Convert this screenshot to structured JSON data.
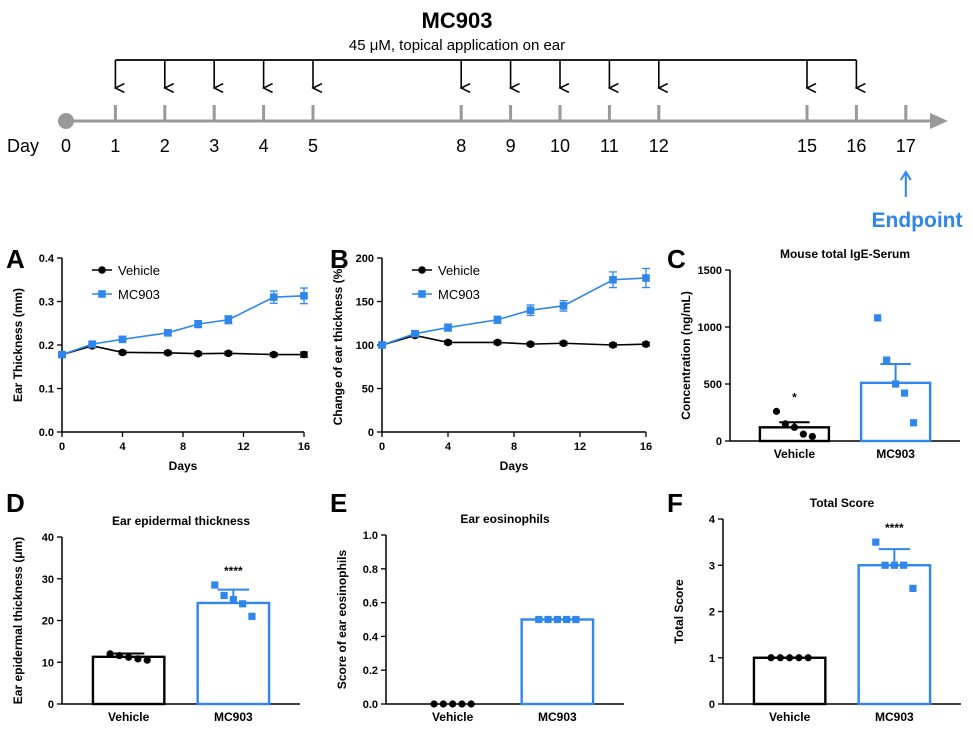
{
  "colors": {
    "vehicle": "#000000",
    "mc903": "#2f86eb",
    "endpoint": "#2f86eb",
    "timeline_axis": "#999999"
  },
  "timeline": {
    "title": "MC903",
    "subtitle": "45 μM, topical application on ear",
    "day_label": "Day",
    "days": [
      0,
      1,
      2,
      3,
      4,
      5,
      8,
      9,
      10,
      11,
      12,
      15,
      16,
      17
    ],
    "application_days": [
      1,
      2,
      3,
      4,
      5,
      8,
      9,
      10,
      11,
      12,
      15,
      16
    ],
    "endpoint_day": 17,
    "endpoint_label": "Endpoint"
  },
  "chart_data": [
    {
      "panel": "A",
      "type": "line",
      "title": "",
      "xlabel": "Days",
      "ylabel": "Ear Thickness (mm)",
      "xlim": [
        0,
        16
      ],
      "ylim": [
        0,
        0.4
      ],
      "xticks": [
        0,
        4,
        8,
        12,
        16
      ],
      "yticks": [
        0.0,
        0.1,
        0.2,
        0.3,
        0.4
      ],
      "yticklabels": [
        "0.0",
        "0.1",
        "0.2",
        "0.3",
        "0.4"
      ],
      "legend": "top-left",
      "series": [
        {
          "name": "Vehicle",
          "x": [
            0,
            2,
            4,
            7,
            9,
            11,
            14,
            16
          ],
          "y": [
            0.178,
            0.198,
            0.183,
            0.182,
            0.18,
            0.181,
            0.178,
            0.178
          ],
          "err": [
            0.004,
            0.004,
            0.004,
            0.004,
            0.004,
            0.004,
            0.004,
            0.006
          ]
        },
        {
          "name": "MC903",
          "x": [
            0,
            2,
            4,
            7,
            9,
            11,
            14,
            16
          ],
          "y": [
            0.178,
            0.202,
            0.213,
            0.228,
            0.248,
            0.258,
            0.31,
            0.313
          ],
          "err": [
            0.004,
            0.005,
            0.006,
            0.007,
            0.008,
            0.009,
            0.014,
            0.018
          ]
        }
      ]
    },
    {
      "panel": "B",
      "type": "line",
      "title": "",
      "xlabel": "Days",
      "ylabel": "Change of ear thickness (%)",
      "xlim": [
        0,
        16
      ],
      "ylim": [
        0,
        200
      ],
      "xticks": [
        0,
        4,
        8,
        12,
        16
      ],
      "yticks": [
        0,
        50,
        100,
        150,
        200
      ],
      "yticklabels": [
        "0",
        "50",
        "100",
        "150",
        "200"
      ],
      "legend": "top-left",
      "series": [
        {
          "name": "Vehicle",
          "x": [
            0,
            2,
            4,
            7,
            9,
            11,
            14,
            16
          ],
          "y": [
            100,
            111,
            103,
            103,
            101,
            102,
            100,
            101
          ],
          "err": [
            2,
            2,
            2,
            2,
            2,
            2,
            2,
            2
          ]
        },
        {
          "name": "MC903",
          "x": [
            0,
            2,
            4,
            7,
            9,
            11,
            14,
            16
          ],
          "y": [
            100,
            113,
            120,
            129,
            140,
            145,
            175,
            177
          ],
          "err": [
            2,
            3,
            4,
            4,
            6,
            6,
            9,
            11
          ]
        }
      ]
    },
    {
      "panel": "C",
      "type": "bar",
      "title": "Mouse total IgE-Serum",
      "xlabel": "",
      "ylabel": "Concentration (ng/mL)",
      "ylim": [
        0,
        1500
      ],
      "yticks": [
        0,
        500,
        1000,
        1500
      ],
      "yticklabels": [
        "0",
        "500",
        "1000",
        "1500"
      ],
      "categories": [
        "Vehicle",
        "MC903"
      ],
      "values": [
        120,
        510
      ],
      "sem": [
        45,
        165
      ],
      "points": [
        [
          260,
          150,
          120,
          60,
          40
        ],
        [
          1080,
          710,
          500,
          420,
          160
        ]
      ],
      "annotations": [
        "*",
        ""
      ]
    },
    {
      "panel": "D",
      "type": "bar",
      "title": "Ear epidermal thickness",
      "xlabel": "",
      "ylabel": "Ear epidermal thickness (μm)",
      "ylim": [
        0,
        40
      ],
      "yticks": [
        0,
        10,
        20,
        30,
        40
      ],
      "yticklabels": [
        "0",
        "10",
        "20",
        "30",
        "40"
      ],
      "categories": [
        "Vehicle",
        "MC903"
      ],
      "values": [
        11.3,
        24.2
      ],
      "sem": [
        0.8,
        3.2
      ],
      "points": [
        [
          12.0,
          11.6,
          11.2,
          10.8,
          10.5
        ],
        [
          28.5,
          26.0,
          25.0,
          24.0,
          21.0
        ]
      ],
      "annotations": [
        "",
        "****"
      ]
    },
    {
      "panel": "E",
      "type": "bar",
      "title": "Ear eosinophils",
      "xlabel": "",
      "ylabel": "Score of ear eosinophils",
      "ylim": [
        0,
        1.0
      ],
      "yticks": [
        0.0,
        0.2,
        0.4,
        0.6,
        0.8,
        1.0
      ],
      "yticklabels": [
        "0.0",
        "0.2",
        "0.4",
        "0.6",
        "0.8",
        "1.0"
      ],
      "categories": [
        "Vehicle",
        "MC903"
      ],
      "values": [
        0.0,
        0.5
      ],
      "sem": [
        0,
        0
      ],
      "points": [
        [
          0,
          0,
          0,
          0,
          0
        ],
        [
          0.5,
          0.5,
          0.5,
          0.5,
          0.5
        ]
      ],
      "annotations": [
        "",
        ""
      ]
    },
    {
      "panel": "F",
      "type": "bar",
      "title": "Total Score",
      "xlabel": "",
      "ylabel": "Total Score",
      "ylim": [
        0,
        4
      ],
      "yticks": [
        0,
        1,
        2,
        3,
        4
      ],
      "yticklabels": [
        "0",
        "1",
        "2",
        "3",
        "4"
      ],
      "categories": [
        "Vehicle",
        "MC903"
      ],
      "values": [
        1.0,
        3.0
      ],
      "sem": [
        0,
        0.35
      ],
      "points": [
        [
          1,
          1,
          1,
          1,
          1
        ],
        [
          3.5,
          3.0,
          3.0,
          3.0,
          2.5
        ]
      ],
      "annotations": [
        "",
        "****"
      ]
    }
  ]
}
